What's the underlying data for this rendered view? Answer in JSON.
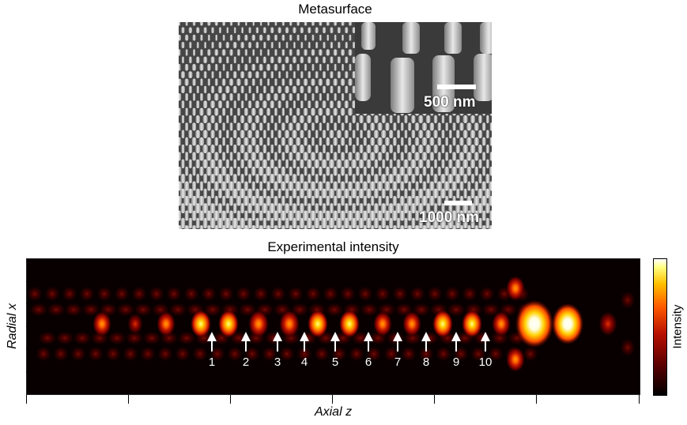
{
  "figure": {
    "sem_title": "Metasurface",
    "inset_scale_label": "500 nm",
    "main_scale_label": "1000 nm",
    "plot_title": "Experimental intensity",
    "x_axis_label": "Axial z",
    "y_axis_label": "Radial x",
    "colorbar_label": "Intensity",
    "foci_labels": [
      "1",
      "2",
      "3",
      "4",
      "5",
      "6",
      "7",
      "8",
      "9",
      "10"
    ],
    "colormap": [
      "#000000",
      "#5a0000",
      "#b81000",
      "#ff5a00",
      "#ffc000",
      "#ffff80",
      "#ffffff"
    ]
  }
}
